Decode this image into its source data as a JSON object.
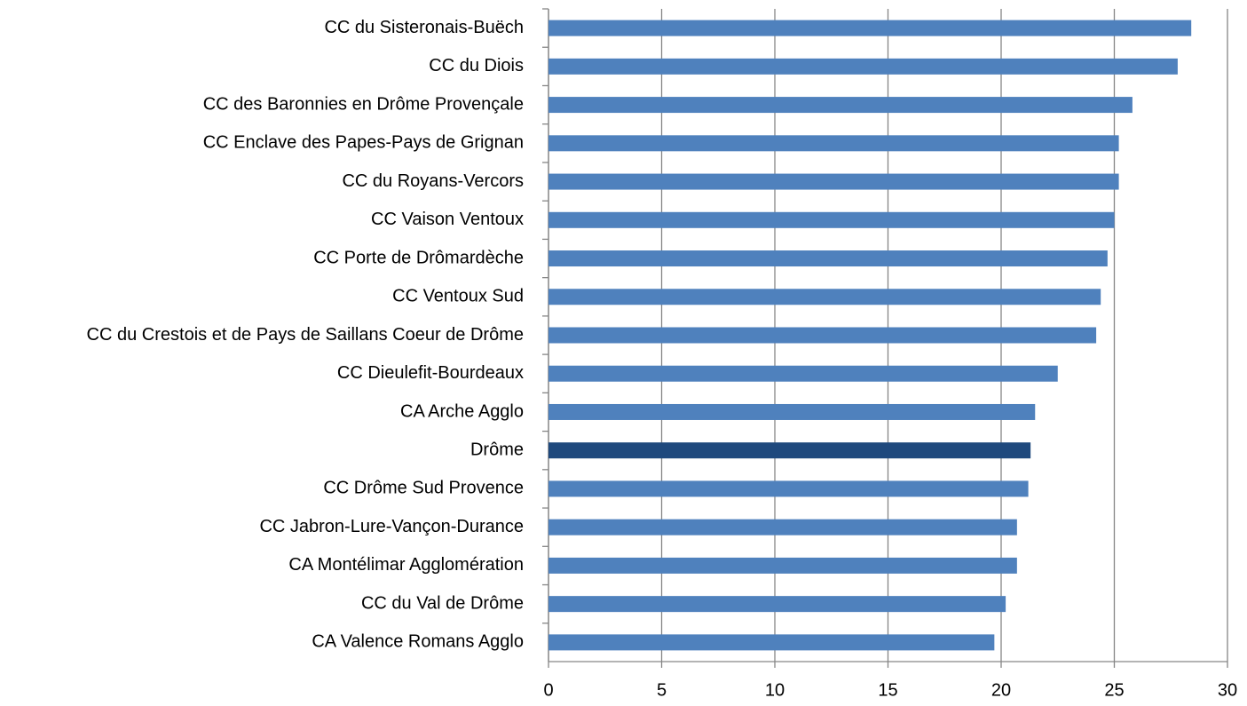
{
  "chart_data": {
    "type": "barh",
    "categories": [
      "CC du Sisteronais-Buëch",
      "CC du Diois",
      "CC des Baronnies en Drôme Provençale",
      "CC Enclave des Papes-Pays de Grignan",
      "CC du Royans-Vercors",
      "CC Vaison Ventoux",
      "CC Porte de Drômardèche",
      "CC Ventoux Sud",
      "CC du Crestois et de Pays de Saillans Coeur de Drôme",
      "CC Dieulefit-Bourdeaux",
      "CA Arche Agglo",
      "Drôme",
      "CC Drôme Sud Provence",
      "CC Jabron-Lure-Vançon-Durance",
      "CA Montélimar Agglomération",
      "CC du Val de Drôme",
      "CA Valence Romans Agglo"
    ],
    "values": [
      28.4,
      27.8,
      25.8,
      25.2,
      25.2,
      25.0,
      24.7,
      24.4,
      24.2,
      22.5,
      21.5,
      21.3,
      21.2,
      20.7,
      20.7,
      20.2,
      19.7
    ],
    "colors": [
      "#4f81bd",
      "#4f81bd",
      "#4f81bd",
      "#4f81bd",
      "#4f81bd",
      "#4f81bd",
      "#4f81bd",
      "#4f81bd",
      "#4f81bd",
      "#4f81bd",
      "#4f81bd",
      "#1f497d",
      "#4f81bd",
      "#4f81bd",
      "#4f81bd",
      "#4f81bd",
      "#4f81bd"
    ],
    "xlim": [
      0,
      30
    ],
    "xticks": [
      0,
      5,
      10,
      15,
      20,
      25,
      30
    ],
    "grid": true
  }
}
